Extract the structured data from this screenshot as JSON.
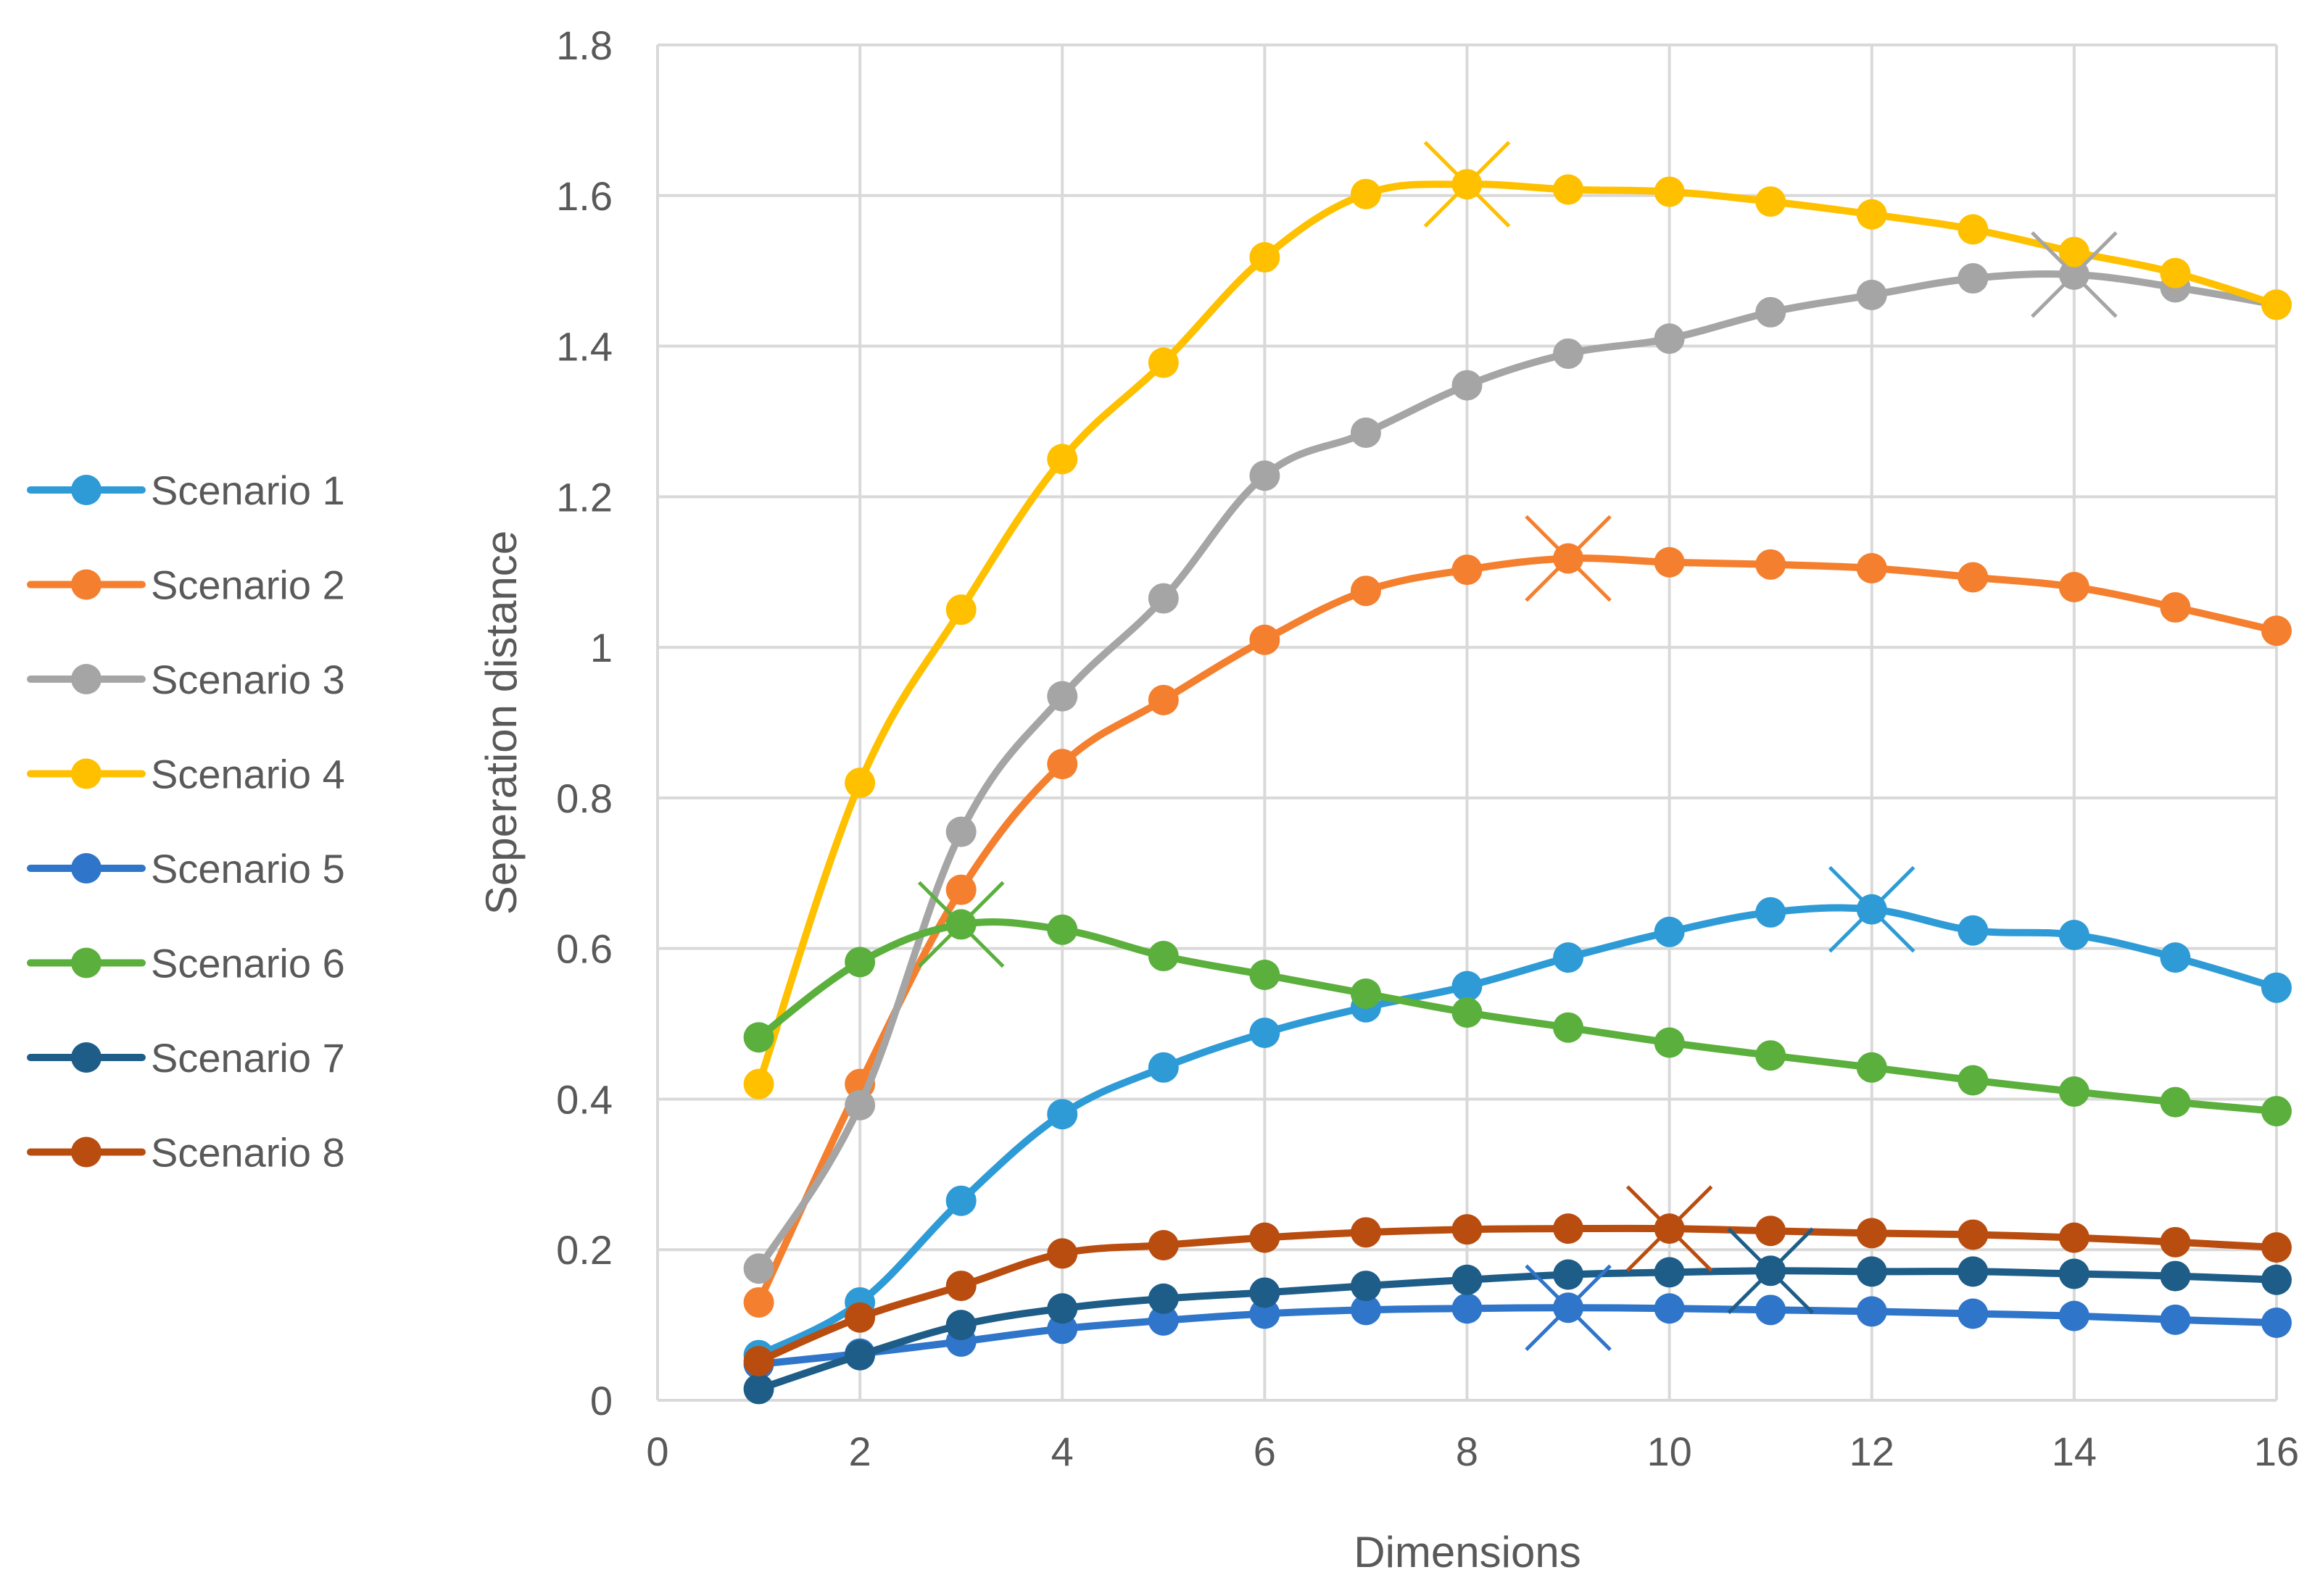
{
  "chart_data": {
    "type": "line",
    "title": "",
    "xlabel": "Dimensions",
    "ylabel": "Seperation distance",
    "xlim": [
      0,
      16
    ],
    "ylim": [
      0,
      1.8
    ],
    "x_ticks": [
      0,
      2,
      4,
      6,
      8,
      10,
      12,
      14,
      16
    ],
    "y_ticks": [
      0,
      0.2,
      0.4,
      0.6,
      0.8,
      1,
      1.2,
      1.4,
      1.6,
      1.8
    ],
    "y_tick_labels": [
      "0",
      "0.2",
      "0.4",
      "0.6",
      "0.8",
      "1",
      "1.2",
      "1.4",
      "1.6",
      "1.8"
    ],
    "grid": true,
    "legend_position": "left",
    "x": [
      1,
      2,
      3,
      4,
      5,
      6,
      7,
      8,
      9,
      10,
      11,
      12,
      13,
      14,
      15,
      16
    ],
    "series": [
      {
        "name": "Scenario 1",
        "color": "#2E9BD6",
        "values": [
          0.06,
          0.13,
          0.265,
          0.38,
          0.442,
          0.488,
          0.522,
          0.55,
          0.588,
          0.622,
          0.648,
          0.652,
          0.624,
          0.618,
          0.588,
          0.548
        ],
        "max_marker": {
          "x": 12,
          "y": 0.652
        }
      },
      {
        "name": "Scenario 2",
        "color": "#F47F2E",
        "values": [
          0.13,
          0.42,
          0.678,
          0.845,
          0.93,
          1.01,
          1.075,
          1.103,
          1.118,
          1.113,
          1.11,
          1.105,
          1.093,
          1.08,
          1.053,
          1.022
        ],
        "max_marker": {
          "x": 9,
          "y": 1.118
        }
      },
      {
        "name": "Scenario 3",
        "color": "#A5A5A5",
        "values": [
          0.175,
          0.392,
          0.755,
          0.935,
          1.065,
          1.228,
          1.285,
          1.348,
          1.39,
          1.41,
          1.445,
          1.468,
          1.49,
          1.495,
          1.478,
          1.455
        ],
        "max_marker": {
          "x": 14,
          "y": 1.495
        }
      },
      {
        "name": "Scenario 4",
        "color": "#FFC000",
        "values": [
          0.42,
          0.82,
          1.05,
          1.25,
          1.378,
          1.518,
          1.602,
          1.615,
          1.608,
          1.605,
          1.592,
          1.575,
          1.555,
          1.525,
          1.497,
          1.455
        ],
        "max_marker": {
          "x": 8,
          "y": 1.615
        }
      },
      {
        "name": "Scenario 5",
        "color": "#2F75C9",
        "values": [
          0.048,
          0.062,
          0.078,
          0.095,
          0.106,
          0.115,
          0.12,
          0.122,
          0.123,
          0.122,
          0.12,
          0.118,
          0.115,
          0.112,
          0.107,
          0.103
        ],
        "max_marker": {
          "x": 9,
          "y": 0.123
        }
      },
      {
        "name": "Scenario 6",
        "color": "#5BAF3C",
        "values": [
          0.482,
          0.582,
          0.632,
          0.625,
          0.59,
          0.565,
          0.54,
          0.515,
          0.495,
          0.475,
          0.458,
          0.442,
          0.425,
          0.41,
          0.396,
          0.384
        ],
        "max_marker": {
          "x": 3,
          "y": 0.632
        }
      },
      {
        "name": "Scenario 7",
        "color": "#1E5D87",
        "values": [
          0.015,
          0.06,
          0.1,
          0.122,
          0.135,
          0.143,
          0.152,
          0.16,
          0.167,
          0.17,
          0.172,
          0.171,
          0.171,
          0.168,
          0.165,
          0.16
        ],
        "max_marker": {
          "x": 11,
          "y": 0.172
        }
      },
      {
        "name": "Scenario 8",
        "color": "#B94D0F",
        "values": [
          0.052,
          0.11,
          0.152,
          0.195,
          0.206,
          0.216,
          0.223,
          0.227,
          0.228,
          0.228,
          0.225,
          0.222,
          0.22,
          0.216,
          0.21,
          0.203
        ],
        "max_marker": {
          "x": 10,
          "y": 0.228
        }
      }
    ]
  }
}
